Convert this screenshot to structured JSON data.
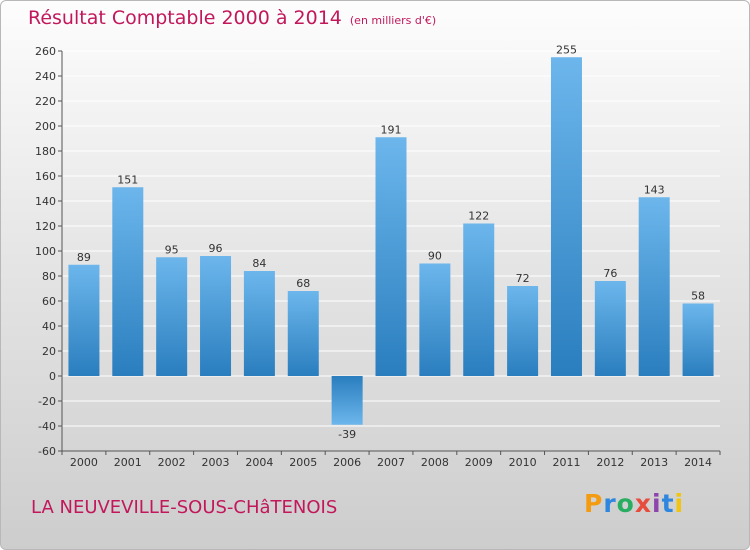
{
  "header": {
    "title": "Résultat Comptable 2000 à 2014",
    "subtitle": "(en milliers d'€)"
  },
  "footer": {
    "commune": "LA NEUVEVILLE-SOUS-CHâTENOIS"
  },
  "logo": {
    "text": "Proxiti",
    "letters": [
      "P",
      "r",
      "o",
      "x",
      "i",
      "t",
      "i"
    ],
    "colors": [
      "#f39c12",
      "#2e86de",
      "#27ae60",
      "#e74c3c",
      "#8e44ad",
      "#2e86de",
      "#f1c40f"
    ]
  },
  "colors": {
    "bar_top": "#6cb6ec",
    "bar_bottom": "#2a7ebe",
    "text_accent": "#c2185b",
    "grid": "#ffffff"
  },
  "chart_data": {
    "type": "bar",
    "categories": [
      "2000",
      "2001",
      "2002",
      "2003",
      "2004",
      "2005",
      "2006",
      "2007",
      "2008",
      "2009",
      "2010",
      "2011",
      "2012",
      "2013",
      "2014"
    ],
    "values": [
      89,
      151,
      95,
      96,
      84,
      68,
      -39,
      191,
      90,
      122,
      72,
      255,
      76,
      143,
      58
    ],
    "data_labels": [
      "89",
      "151",
      "95",
      "96",
      "84",
      "68",
      "-39",
      "191",
      "90",
      "122",
      "72",
      "255",
      "76",
      "143",
      "58"
    ],
    "yticks": [
      "-60",
      "-40",
      "-20",
      "0",
      "20",
      "40",
      "60",
      "80",
      "100",
      "120",
      "140",
      "160",
      "180",
      "200",
      "220",
      "240",
      "260"
    ],
    "ylim": [
      -60,
      260
    ],
    "grid": true,
    "legend": "none"
  }
}
